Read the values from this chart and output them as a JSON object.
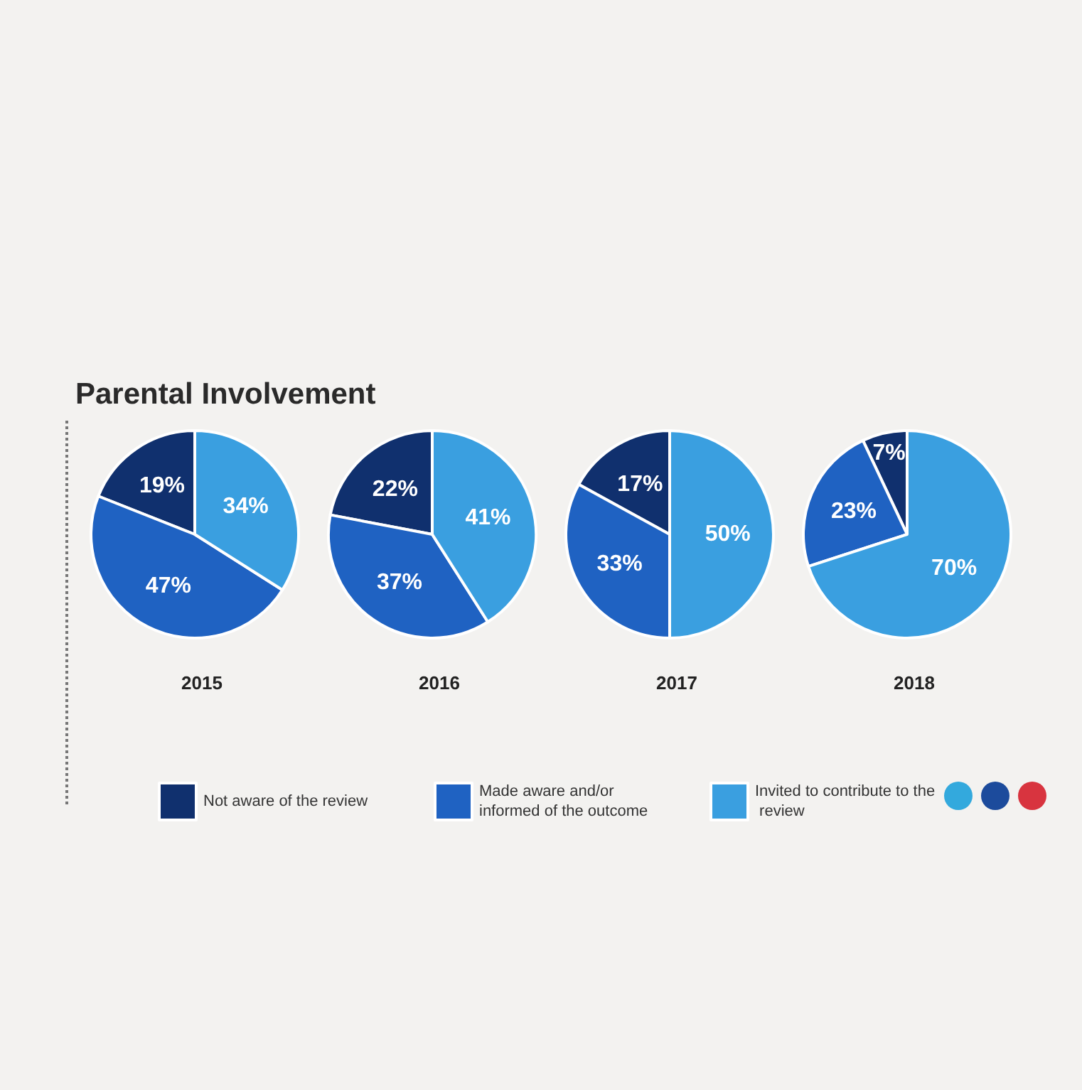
{
  "chart_data": {
    "type": "pie",
    "title": "Parental Involvement",
    "categories": [
      "Not aware of the review",
      "Made aware and/or informed of the outcome",
      "Invited to contribute to the review"
    ],
    "colors": [
      "#10306e",
      "#1f62c2",
      "#3a9fe0"
    ],
    "series": [
      {
        "name": "2015",
        "values": [
          19,
          47,
          34
        ],
        "value_labels": [
          "19%",
          "47%",
          "34%"
        ]
      },
      {
        "name": "2016",
        "values": [
          22,
          37,
          41
        ],
        "value_labels": [
          "22%",
          "37%",
          "41%"
        ]
      },
      {
        "name": "2017",
        "values": [
          17,
          33,
          50
        ],
        "value_labels": [
          "17%",
          "33%",
          "50%"
        ]
      },
      {
        "name": "2018",
        "values": [
          7,
          23,
          70
        ],
        "value_labels": [
          "7%",
          "23%",
          "70%"
        ]
      }
    ],
    "legend": "bottom"
  }
}
